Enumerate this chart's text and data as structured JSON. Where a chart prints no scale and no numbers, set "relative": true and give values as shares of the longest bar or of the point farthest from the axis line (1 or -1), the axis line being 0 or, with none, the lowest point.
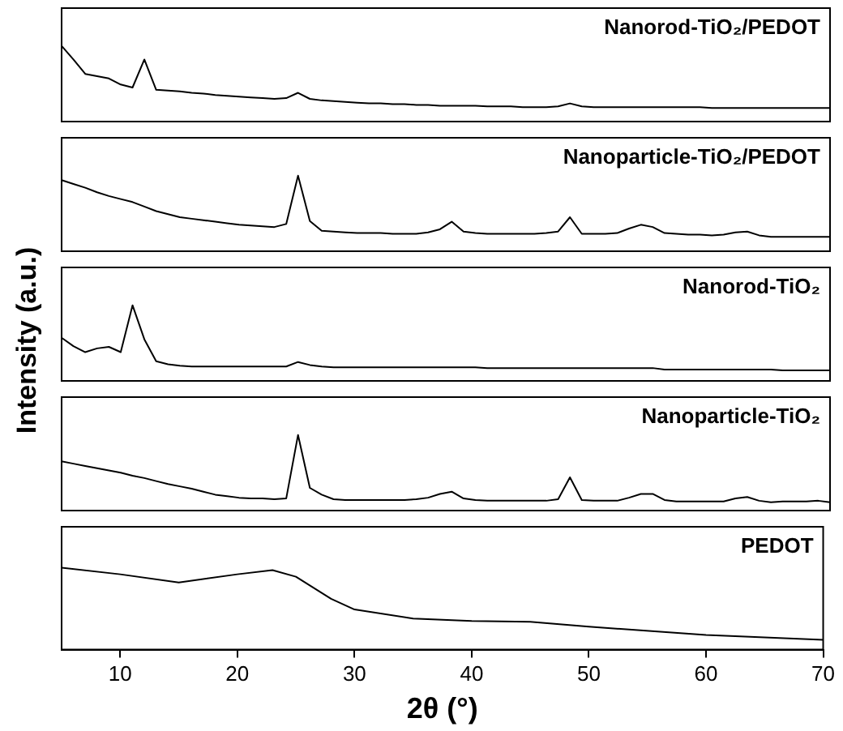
{
  "chart_data": [
    {
      "type": "line",
      "ylabel": "Intensity (a.u.)",
      "categories": [
        null,
        null,
        null,
        null,
        null,
        null,
        null,
        null,
        null,
        null,
        null,
        null,
        null,
        null,
        null,
        null,
        null,
        null,
        null,
        null,
        null,
        null,
        null,
        null,
        null,
        null,
        null,
        null,
        null,
        null,
        null,
        null,
        null,
        null,
        null,
        null,
        null,
        null,
        null,
        null,
        null,
        null,
        null,
        null,
        null,
        null,
        null,
        null,
        null,
        null,
        null,
        null,
        null,
        null,
        null,
        null,
        null,
        null,
        null,
        null,
        null,
        null,
        null,
        null,
        null,
        null
      ],
      "relative": true,
      "tick_labels": false,
      "series": [
        {
          "name": "Nanorod-TiO₂/PEDOT",
          "color": "#000000",
          "values": [
            1,
            0.82,
            0.63,
            0.6,
            0.57,
            0.49,
            0.45,
            0.82,
            0.42,
            0.41,
            0.4,
            0.38,
            0.37,
            0.35,
            0.34,
            0.33,
            0.32,
            0.31,
            0.3,
            0.31,
            0.38,
            0.3,
            0.28,
            0.27,
            0.26,
            0.25,
            0.24,
            0.24,
            0.23,
            0.23,
            0.22,
            0.22,
            0.21,
            0.21,
            0.21,
            0.21,
            0.2,
            0.2,
            0.2,
            0.19,
            0.19,
            0.19,
            0.2,
            0.24,
            0.2,
            0.19,
            0.19,
            0.19,
            0.19,
            0.19,
            0.19,
            0.19,
            0.19,
            0.19,
            0.19,
            0.18,
            0.18,
            0.18,
            0.18,
            0.18,
            0.18,
            0.18,
            0.18,
            0.18,
            0.18,
            0.18
          ]
        }
      ]
    },
    {
      "type": "line",
      "categories": [
        null,
        null,
        null,
        null,
        null,
        null,
        null,
        null,
        null,
        null,
        null,
        null,
        null,
        null,
        null,
        null,
        null,
        null,
        null,
        null,
        null,
        null,
        null,
        null,
        null,
        null,
        null,
        null,
        null,
        null,
        null,
        null,
        null,
        null,
        null,
        null,
        null,
        null,
        null,
        null,
        null,
        null,
        null,
        null,
        null,
        null,
        null,
        null,
        null,
        null,
        null,
        null,
        null,
        null,
        null,
        null,
        null,
        null,
        null,
        null,
        null,
        null,
        null,
        null,
        null,
        null
      ],
      "relative": true,
      "tick_labels": false,
      "series": [
        {
          "name": "Nanoparticle-TiO₂/PEDOT",
          "color": "#000000",
          "values": [
            0.94,
            0.89,
            0.84,
            0.78,
            0.73,
            0.69,
            0.65,
            0.59,
            0.53,
            0.49,
            0.45,
            0.43,
            0.41,
            0.39,
            0.37,
            0.35,
            0.34,
            0.33,
            0.32,
            0.36,
            1,
            0.4,
            0.27,
            0.26,
            0.25,
            0.24,
            0.24,
            0.24,
            0.23,
            0.23,
            0.23,
            0.25,
            0.29,
            0.39,
            0.26,
            0.24,
            0.23,
            0.23,
            0.23,
            0.23,
            0.23,
            0.24,
            0.26,
            0.45,
            0.23,
            0.23,
            0.23,
            0.24,
            0.3,
            0.35,
            0.32,
            0.24,
            0.23,
            0.22,
            0.22,
            0.21,
            0.22,
            0.25,
            0.26,
            0.21,
            0.19,
            0.19,
            0.19,
            0.19,
            0.19,
            0.19
          ]
        }
      ]
    },
    {
      "type": "line",
      "categories": [
        null,
        null,
        null,
        null,
        null,
        null,
        null,
        null,
        null,
        null,
        null,
        null,
        null,
        null,
        null,
        null,
        null,
        null,
        null,
        null,
        null,
        null,
        null,
        null,
        null,
        null,
        null,
        null,
        null,
        null,
        null,
        null,
        null,
        null,
        null,
        null,
        null,
        null,
        null,
        null,
        null,
        null,
        null,
        null,
        null,
        null,
        null,
        null,
        null,
        null,
        null,
        null,
        null,
        null,
        null,
        null,
        null,
        null,
        null,
        null,
        null,
        null,
        null,
        null,
        null,
        null
      ],
      "relative": true,
      "tick_labels": false,
      "series": [
        {
          "name": "Nanorod-TiO₂",
          "color": "#000000",
          "values": [
            0.57,
            0.46,
            0.38,
            0.43,
            0.45,
            0.38,
            1,
            0.55,
            0.26,
            0.22,
            0.2,
            0.19,
            0.19,
            0.19,
            0.19,
            0.19,
            0.19,
            0.19,
            0.19,
            0.19,
            0.25,
            0.21,
            0.19,
            0.18,
            0.18,
            0.18,
            0.18,
            0.18,
            0.18,
            0.18,
            0.18,
            0.18,
            0.18,
            0.18,
            0.18,
            0.18,
            0.17,
            0.17,
            0.17,
            0.17,
            0.17,
            0.17,
            0.17,
            0.17,
            0.17,
            0.17,
            0.17,
            0.17,
            0.17,
            0.17,
            0.17,
            0.15,
            0.15,
            0.15,
            0.15,
            0.15,
            0.15,
            0.15,
            0.15,
            0.15,
            0.15,
            0.14,
            0.14,
            0.14,
            0.14,
            0.14
          ]
        }
      ]
    },
    {
      "type": "line",
      "categories": [
        null,
        null,
        null,
        null,
        null,
        null,
        null,
        null,
        null,
        null,
        null,
        null,
        null,
        null,
        null,
        null,
        null,
        null,
        null,
        null,
        null,
        null,
        null,
        null,
        null,
        null,
        null,
        null,
        null,
        null,
        null,
        null,
        null,
        null,
        null,
        null,
        null,
        null,
        null,
        null,
        null,
        null,
        null,
        null,
        null,
        null,
        null,
        null,
        null,
        null,
        null,
        null,
        null,
        null,
        null,
        null,
        null,
        null,
        null,
        null,
        null,
        null,
        null,
        null,
        null,
        null
      ],
      "relative": true,
      "tick_labels": false,
      "series": [
        {
          "name": "Nanoparticle-TiO₂",
          "color": "#000000",
          "values": [
            0.65,
            0.62,
            0.59,
            0.56,
            0.53,
            0.5,
            0.46,
            0.43,
            0.39,
            0.35,
            0.32,
            0.29,
            0.25,
            0.21,
            0.19,
            0.17,
            0.16,
            0.16,
            0.15,
            0.16,
            1,
            0.3,
            0.21,
            0.15,
            0.14,
            0.14,
            0.14,
            0.14,
            0.14,
            0.14,
            0.15,
            0.17,
            0.22,
            0.25,
            0.16,
            0.14,
            0.13,
            0.13,
            0.13,
            0.13,
            0.13,
            0.13,
            0.15,
            0.44,
            0.14,
            0.13,
            0.13,
            0.13,
            0.17,
            0.22,
            0.22,
            0.14,
            0.12,
            0.12,
            0.12,
            0.12,
            0.12,
            0.16,
            0.18,
            0.13,
            0.11,
            0.12,
            0.12,
            0.12,
            0.13,
            0.11
          ]
        }
      ]
    },
    {
      "type": "line",
      "xlabel": "2θ (°)",
      "xlim": [
        5,
        70
      ],
      "xticks": [
        10,
        20,
        30,
        40,
        50,
        60,
        70
      ],
      "relative": true,
      "tick_labels": "x",
      "series": [
        {
          "name": "PEDOT",
          "color": "#000000",
          "x": [
            5,
            10,
            15,
            20,
            23,
            25,
            28,
            30,
            35,
            40,
            45,
            50,
            60,
            70
          ],
          "values": [
            1,
            0.92,
            0.82,
            0.92,
            0.97,
            0.89,
            0.62,
            0.49,
            0.38,
            0.35,
            0.34,
            0.28,
            0.18,
            0.12
          ]
        }
      ]
    }
  ]
}
